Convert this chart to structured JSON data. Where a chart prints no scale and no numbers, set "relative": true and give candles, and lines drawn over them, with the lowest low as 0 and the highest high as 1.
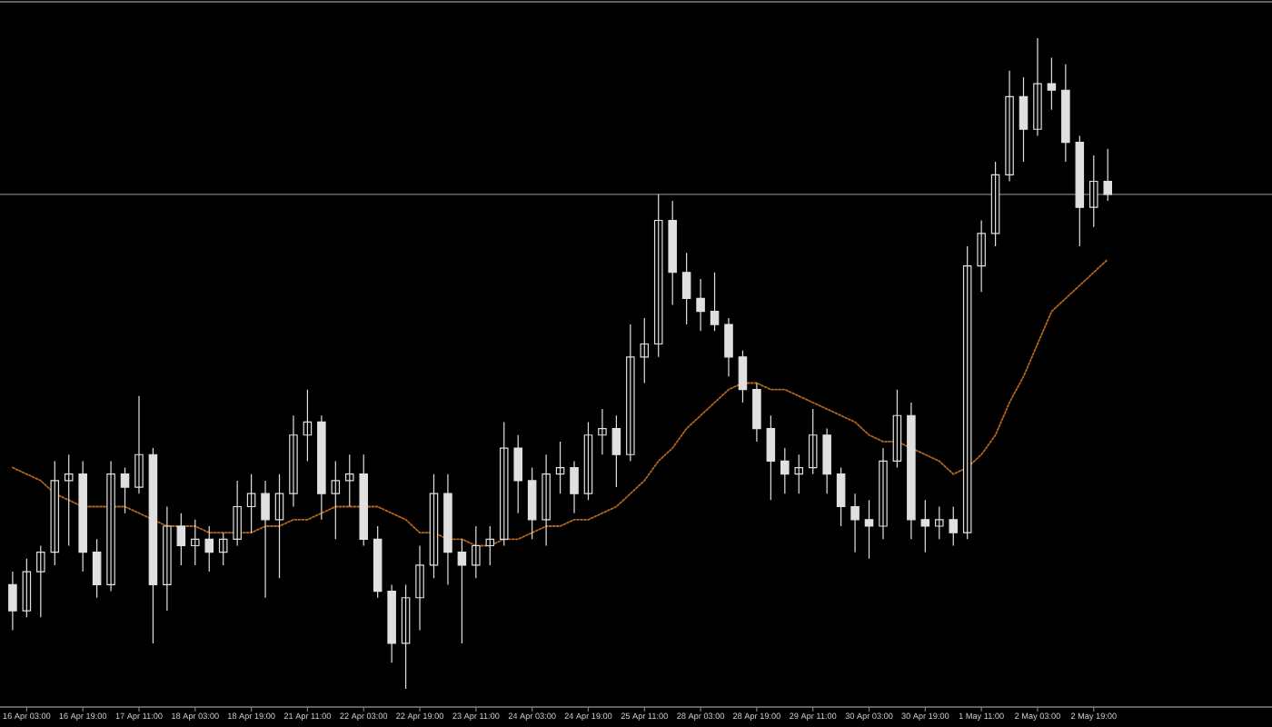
{
  "chart_data": {
    "type": "candlestick",
    "relative": true,
    "categories": [
      null,
      "16 Apr 03:00",
      null,
      null,
      null,
      "16 Apr 19:00",
      null,
      null,
      null,
      "17 Apr 11:00",
      null,
      null,
      null,
      "18 Apr 03:00",
      null,
      null,
      null,
      "18 Apr 19:00",
      null,
      null,
      null,
      "21 Apr 11:00",
      null,
      null,
      null,
      "22 Apr 03:00",
      null,
      null,
      null,
      "22 Apr 19:00",
      null,
      null,
      null,
      "23 Apr 11:00",
      null,
      null,
      null,
      "24 Apr 03:00",
      null,
      null,
      null,
      "24 Apr 19:00",
      null,
      null,
      null,
      "25 Apr 11:00",
      null,
      null,
      null,
      "28 Apr 03:00",
      null,
      null,
      null,
      "28 Apr 19:00",
      null,
      null,
      null,
      "29 Apr 11:00",
      null,
      null,
      null,
      "30 Apr 03:00",
      null,
      null,
      null,
      "30 Apr 19:00",
      null,
      null,
      null,
      "1 May 11:00",
      null,
      null,
      null,
      "2 May 03:00",
      null,
      null,
      null,
      "2 May 19:00",
      null
    ],
    "series": [
      {
        "type": "line",
        "color": "#b5651d",
        "line_style": "dotted",
        "values": [
          0.34,
          0.33,
          0.32,
          0.3,
          0.29,
          0.28,
          0.28,
          0.28,
          0.28,
          0.27,
          0.26,
          0.25,
          0.25,
          0.25,
          0.24,
          0.24,
          0.24,
          0.24,
          0.25,
          0.25,
          0.26,
          0.26,
          0.27,
          0.28,
          0.28,
          0.28,
          0.28,
          0.27,
          0.26,
          0.24,
          0.24,
          0.23,
          0.23,
          0.22,
          0.22,
          0.23,
          0.23,
          0.24,
          0.25,
          0.25,
          0.26,
          0.26,
          0.27,
          0.28,
          0.3,
          0.32,
          0.35,
          0.37,
          0.4,
          0.42,
          0.44,
          0.46,
          0.47,
          0.47,
          0.46,
          0.46,
          0.45,
          0.44,
          0.43,
          0.42,
          0.41,
          0.39,
          0.38,
          0.38,
          0.37,
          0.36,
          0.35,
          0.33,
          0.34,
          0.36,
          0.39,
          0.44,
          0.48,
          0.53,
          0.58,
          0.6,
          0.62,
          0.64,
          0.66
        ]
      },
      {
        "color": "#e0e0e0",
        "ohlc": [
          [
            0.16,
            0.18,
            0.09,
            0.12
          ],
          [
            0.12,
            0.2,
            0.11,
            0.18
          ],
          [
            0.18,
            0.22,
            0.11,
            0.21
          ],
          [
            0.21,
            0.35,
            0.19,
            0.32
          ],
          [
            0.32,
            0.36,
            0.22,
            0.33
          ],
          [
            0.33,
            0.35,
            0.18,
            0.21
          ],
          [
            0.21,
            0.23,
            0.14,
            0.16
          ],
          [
            0.16,
            0.35,
            0.15,
            0.33
          ],
          [
            0.33,
            0.34,
            0.27,
            0.31
          ],
          [
            0.31,
            0.45,
            0.3,
            0.36
          ],
          [
            0.36,
            0.37,
            0.07,
            0.16
          ],
          [
            0.16,
            0.28,
            0.12,
            0.25
          ],
          [
            0.25,
            0.27,
            0.19,
            0.22
          ],
          [
            0.22,
            0.26,
            0.19,
            0.23
          ],
          [
            0.23,
            0.25,
            0.18,
            0.21
          ],
          [
            0.21,
            0.24,
            0.19,
            0.23
          ],
          [
            0.23,
            0.32,
            0.22,
            0.28
          ],
          [
            0.28,
            0.33,
            0.24,
            0.3
          ],
          [
            0.3,
            0.32,
            0.14,
            0.26
          ],
          [
            0.26,
            0.33,
            0.17,
            0.3
          ],
          [
            0.3,
            0.42,
            0.28,
            0.39
          ],
          [
            0.39,
            0.46,
            0.35,
            0.41
          ],
          [
            0.41,
            0.42,
            0.26,
            0.3
          ],
          [
            0.3,
            0.35,
            0.23,
            0.32
          ],
          [
            0.32,
            0.36,
            0.28,
            0.33
          ],
          [
            0.33,
            0.36,
            0.22,
            0.23
          ],
          [
            0.23,
            0.25,
            0.14,
            0.15
          ],
          [
            0.15,
            0.16,
            0.04,
            0.07
          ],
          [
            0.07,
            0.16,
            0,
            0.14
          ],
          [
            0.14,
            0.22,
            0.09,
            0.19
          ],
          [
            0.19,
            0.33,
            0.17,
            0.3
          ],
          [
            0.3,
            0.33,
            0.16,
            0.21
          ],
          [
            0.21,
            0.23,
            0.07,
            0.19
          ],
          [
            0.19,
            0.25,
            0.17,
            0.22
          ],
          [
            0.22,
            0.25,
            0.19,
            0.23
          ],
          [
            0.23,
            0.41,
            0.22,
            0.37
          ],
          [
            0.37,
            0.39,
            0.27,
            0.32
          ],
          [
            0.32,
            0.34,
            0.23,
            0.26
          ],
          [
            0.26,
            0.36,
            0.22,
            0.33
          ],
          [
            0.33,
            0.38,
            0.3,
            0.34
          ],
          [
            0.34,
            0.35,
            0.27,
            0.3
          ],
          [
            0.3,
            0.41,
            0.29,
            0.39
          ],
          [
            0.39,
            0.43,
            0.36,
            0.4
          ],
          [
            0.4,
            0.42,
            0.31,
            0.36
          ],
          [
            0.36,
            0.56,
            0.35,
            0.51
          ],
          [
            0.51,
            0.57,
            0.47,
            0.53
          ],
          [
            0.53,
            0.76,
            0.51,
            0.72
          ],
          [
            0.72,
            0.75,
            0.59,
            0.64
          ],
          [
            0.64,
            0.67,
            0.56,
            0.6
          ],
          [
            0.6,
            0.63,
            0.55,
            0.58
          ],
          [
            0.58,
            0.64,
            0.55,
            0.56
          ],
          [
            0.56,
            0.57,
            0.48,
            0.51
          ],
          [
            0.51,
            0.52,
            0.44,
            0.46
          ],
          [
            0.46,
            0.47,
            0.38,
            0.4
          ],
          [
            0.4,
            0.42,
            0.29,
            0.35
          ],
          [
            0.35,
            0.37,
            0.3,
            0.33
          ],
          [
            0.33,
            0.36,
            0.3,
            0.34
          ],
          [
            0.34,
            0.43,
            0.33,
            0.39
          ],
          [
            0.39,
            0.4,
            0.3,
            0.33
          ],
          [
            0.33,
            0.34,
            0.25,
            0.28
          ],
          [
            0.28,
            0.3,
            0.21,
            0.26
          ],
          [
            0.26,
            0.29,
            0.2,
            0.25
          ],
          [
            0.25,
            0.37,
            0.23,
            0.35
          ],
          [
            0.35,
            0.46,
            0.34,
            0.42
          ],
          [
            0.42,
            0.44,
            0.23,
            0.26
          ],
          [
            0.26,
            0.29,
            0.21,
            0.25
          ],
          [
            0.25,
            0.28,
            0.23,
            0.26
          ],
          [
            0.26,
            0.28,
            0.22,
            0.24
          ],
          [
            0.24,
            0.68,
            0.23,
            0.65
          ],
          [
            0.65,
            0.72,
            0.61,
            0.7
          ],
          [
            0.7,
            0.81,
            0.68,
            0.79
          ],
          [
            0.79,
            0.95,
            0.78,
            0.91
          ],
          [
            0.91,
            0.94,
            0.81,
            0.86
          ],
          [
            0.86,
            1,
            0.85,
            0.93
          ],
          [
            0.93,
            0.97,
            0.89,
            0.92
          ],
          [
            0.92,
            0.96,
            0.81,
            0.84
          ],
          [
            0.84,
            0.85,
            0.68,
            0.74
          ],
          [
            0.74,
            0.82,
            0.71,
            0.78
          ],
          [
            0.78,
            0.83,
            0.75,
            0.76
          ]
        ]
      }
    ],
    "ref_lines": [
      {
        "axis": "y",
        "value": 0.76,
        "color": "#5a5a5a",
        "line_style": "solid"
      }
    ]
  }
}
